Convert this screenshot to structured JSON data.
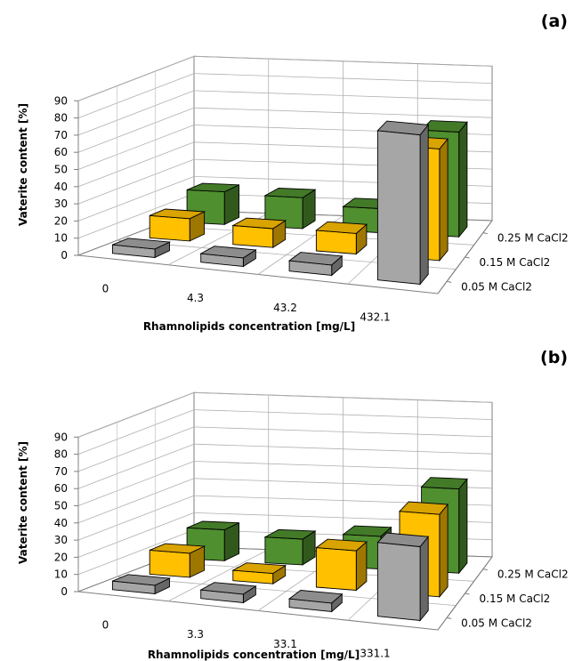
{
  "chart_data": [
    {
      "type": "bar",
      "panel_label": "(a)",
      "categories": [
        "0",
        "4.3",
        "43.2",
        "432.1"
      ],
      "xlabel": "Rhamnolipids concentration [mg/L]",
      "ylabel": "Vaterite content [%]",
      "ylim": [
        0,
        90
      ],
      "yticks": [
        "0",
        "10",
        "20",
        "30",
        "40",
        "50",
        "60",
        "70",
        "80",
        "90"
      ],
      "series": [
        {
          "name": "0.05 M CaCl2",
          "color": "#a6a6a6",
          "values": [
            5,
            5,
            6,
            87
          ]
        },
        {
          "name": "0.15 M CaCl2",
          "color": "#ffc000",
          "values": [
            13,
            11,
            12,
            65
          ]
        },
        {
          "name": "0.25 M CaCl2",
          "color": "#4f8f2f",
          "values": [
            19,
            18,
            14,
            61
          ]
        }
      ]
    },
    {
      "type": "bar",
      "panel_label": "(b)",
      "categories": [
        "0",
        "3.3",
        "33.1",
        "331.1"
      ],
      "xlabel": "Rhamnolipids concentration [mg/L]",
      "ylabel": "Vaterite content [%]",
      "ylim": [
        0,
        90
      ],
      "yticks": [
        "0",
        "10",
        "20",
        "30",
        "40",
        "50",
        "60",
        "70",
        "80",
        "90"
      ],
      "series": [
        {
          "name": "0.05 M CaCl2",
          "color": "#a6a6a6",
          "values": [
            5,
            5,
            5,
            43
          ]
        },
        {
          "name": "0.15 M CaCl2",
          "color": "#ffc000",
          "values": [
            14,
            6,
            23,
            48
          ]
        },
        {
          "name": "0.25 M CaCl2",
          "color": "#4f8f2f",
          "values": [
            18,
            15,
            19,
            49
          ]
        }
      ]
    }
  ]
}
